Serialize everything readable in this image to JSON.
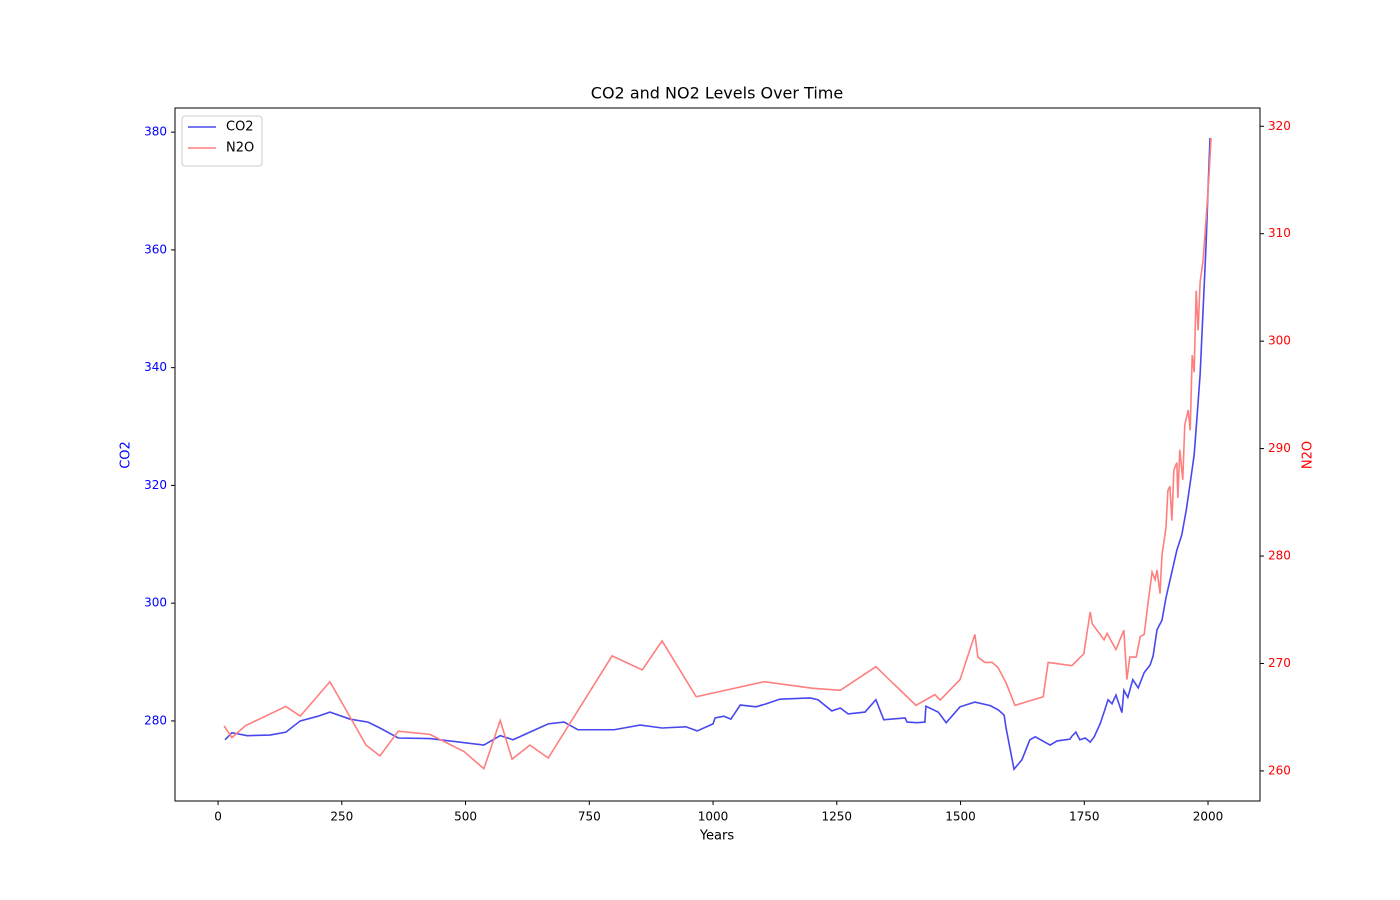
{
  "chart_data": {
    "type": "line",
    "title": "CO2 and NO2 Levels Over Time",
    "x_label": "Years",
    "y_label": "CO2",
    "y2_label": "N2O",
    "xlim": [
      -87,
      2105
    ],
    "xticks": [
      0,
      250,
      500,
      750,
      1000,
      1250,
      1500,
      1750,
      2000
    ],
    "ylim": [
      266.4,
      384.1
    ],
    "yticks": [
      280,
      300,
      320,
      340,
      360,
      380
    ],
    "y_color": "#0000ff",
    "y2lim": [
      257.2,
      321.7
    ],
    "y2ticks": [
      260,
      270,
      280,
      290,
      300,
      310,
      320
    ],
    "y2_color": "#ff0000",
    "legend": "upper left",
    "series": [
      {
        "name": "CO2",
        "color": "#4848f0",
        "x": [
          14,
          28,
          59,
          105,
          137,
          166,
          202,
          226,
          267,
          303,
          327,
          364,
          428,
          537,
          570,
          596,
          630,
          667,
          699,
          727,
          800,
          853,
          897,
          945,
          968,
          1000,
          1004,
          1022,
          1036,
          1055,
          1087,
          1107,
          1135,
          1196,
          1212,
          1240,
          1257,
          1273,
          1307,
          1329,
          1345,
          1388,
          1392,
          1412,
          1428,
          1430,
          1455,
          1471,
          1499,
          1529,
          1560,
          1576,
          1588,
          1592,
          1608,
          1624,
          1640,
          1651,
          1681,
          1695,
          1721,
          1725,
          1733,
          1741,
          1752,
          1762,
          1770,
          1782,
          1790,
          1798,
          1806,
          1814,
          1826,
          1830,
          1838,
          1848,
          1859,
          1871,
          1883,
          1889,
          1897,
          1907,
          1915,
          1927,
          1937,
          1947,
          1956,
          1964,
          1972,
          1978,
          1984,
          1990,
          1996,
          2000,
          2004
        ],
        "values": [
          276.8,
          278.0,
          277.5,
          277.6,
          278.1,
          280.0,
          280.8,
          281.5,
          280.3,
          279.8,
          278.8,
          277.1,
          277.0,
          275.9,
          277.5,
          276.8,
          278.1,
          279.5,
          279.8,
          278.5,
          278.5,
          279.3,
          278.8,
          279.0,
          278.3,
          279.5,
          280.5,
          280.8,
          280.3,
          282.7,
          282.4,
          282.9,
          283.7,
          283.9,
          283.6,
          281.7,
          282.2,
          281.2,
          281.5,
          283.6,
          280.2,
          280.5,
          279.8,
          279.7,
          279.8,
          282.5,
          281.5,
          279.7,
          282.4,
          283.2,
          282.6,
          281.9,
          281.0,
          278.8,
          271.8,
          273.4,
          276.8,
          277.3,
          275.9,
          276.6,
          276.9,
          277.4,
          278.1,
          276.8,
          277.1,
          276.4,
          277.3,
          279.5,
          281.5,
          283.6,
          282.9,
          284.4,
          281.4,
          285.2,
          284.0,
          287.0,
          285.6,
          288.2,
          289.5,
          291.0,
          295.5,
          297.1,
          300.9,
          305.3,
          309.0,
          311.6,
          315.8,
          320.4,
          325.2,
          331.9,
          338.8,
          349.8,
          360.8,
          370.2,
          379.0
        ]
      },
      {
        "name": "N2O",
        "color": "#ff7f7f",
        "axis": "y2",
        "x": [
          12,
          28,
          55,
          137,
          166,
          226,
          299,
          327,
          364,
          428,
          497,
          537,
          570,
          594,
          630,
          667,
          796,
          857,
          897,
          966,
          1103,
          1200,
          1257,
          1329,
          1410,
          1448,
          1459,
          1499,
          1529,
          1535,
          1549,
          1564,
          1576,
          1592,
          1610,
          1667,
          1677,
          1725,
          1749,
          1762,
          1766,
          1790,
          1796,
          1814,
          1830,
          1836,
          1842,
          1855,
          1863,
          1871,
          1879,
          1887,
          1893,
          1897,
          1903,
          1907,
          1915,
          1919,
          1923,
          1927,
          1931,
          1937,
          1939,
          1943,
          1949,
          1953,
          1960,
          1964,
          1968,
          1972,
          1976,
          1980,
          1984,
          1990,
          1996,
          2002,
          2006
        ],
        "values": [
          264.2,
          263.1,
          264.2,
          266.0,
          265.1,
          268.3,
          262.4,
          261.4,
          263.7,
          263.4,
          261.8,
          260.2,
          264.7,
          261.1,
          262.4,
          261.2,
          270.7,
          269.4,
          272.1,
          266.9,
          268.3,
          267.7,
          267.5,
          269.7,
          266.1,
          267.1,
          266.6,
          268.5,
          272.7,
          270.6,
          270.1,
          270.1,
          269.6,
          268.2,
          266.1,
          266.9,
          270.1,
          269.8,
          270.9,
          274.8,
          273.7,
          272.2,
          272.8,
          271.3,
          273.1,
          268.5,
          270.6,
          270.6,
          272.5,
          272.7,
          275.7,
          278.5,
          277.8,
          278.7,
          276.5,
          280.1,
          282.6,
          286.1,
          286.5,
          283.3,
          288.0,
          288.7,
          285.4,
          289.9,
          287.1,
          292.2,
          293.6,
          291.7,
          298.7,
          297.1,
          304.7,
          301.0,
          305.5,
          307.5,
          311.3,
          315.4,
          318.9
        ]
      }
    ]
  }
}
